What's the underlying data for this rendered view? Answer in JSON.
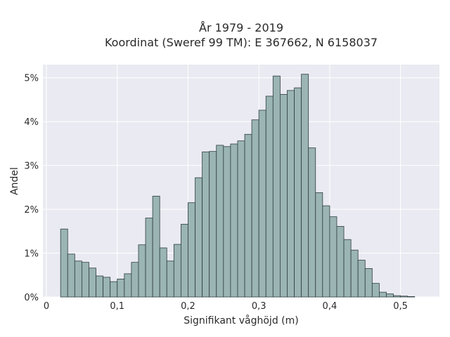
{
  "chart_data": {
    "type": "bar",
    "title_line1": "År 1979 - 2019",
    "title_line2": "Koordinat (Sweref 99 TM): E 367662, N 6158037",
    "xlabel": "Signifikant våghöjd (m)",
    "ylabel": "Andel",
    "xlim": [
      -0.005,
      0.555
    ],
    "ylim": [
      0,
      5.3
    ],
    "x_ticks": [
      0,
      0.1,
      0.2,
      0.3,
      0.4,
      0.5
    ],
    "x_tick_labels": [
      "0",
      "0,1",
      "0,2",
      "0,3",
      "0,4",
      "0,5"
    ],
    "y_ticks": [
      0,
      1,
      2,
      3,
      4,
      5
    ],
    "y_tick_labels": [
      "0%",
      "1%",
      "2%",
      "3%",
      "4%",
      "5%"
    ],
    "bin_start": 0.02,
    "bin_width": 0.01,
    "values": [
      1.55,
      0.98,
      0.82,
      0.79,
      0.66,
      0.48,
      0.45,
      0.35,
      0.41,
      0.53,
      0.79,
      1.19,
      1.8,
      2.3,
      1.12,
      0.82,
      1.2,
      1.66,
      2.15,
      2.72,
      3.31,
      3.32,
      3.46,
      3.43,
      3.49,
      3.56,
      3.71,
      4.04,
      4.26,
      4.58,
      5.04,
      4.62,
      4.71,
      4.77,
      5.08,
      3.4,
      2.38,
      2.08,
      1.83,
      1.61,
      1.31,
      1.07,
      0.84,
      0.65,
      0.31,
      0.11,
      0.07,
      0.03,
      0.02,
      0.01
    ],
    "bar_color": "#9bb4b4",
    "edge_color": "#2f3f3f",
    "background_color": "#eaeaf2",
    "grid": true,
    "grid_color": "#ffffff"
  }
}
